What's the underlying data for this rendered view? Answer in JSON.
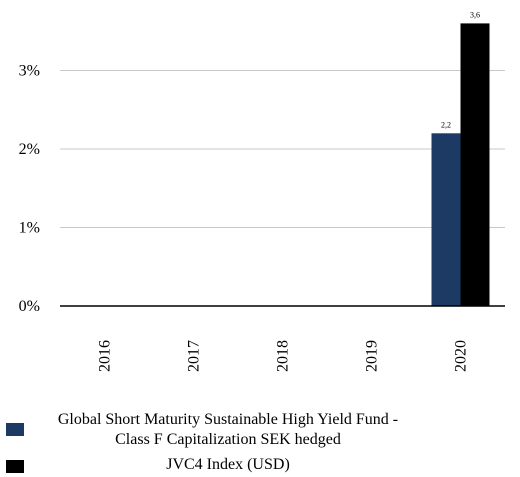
{
  "chart_data": {
    "type": "bar",
    "categories": [
      "2016",
      "2017",
      "2018",
      "2019",
      "2020"
    ],
    "series": [
      {
        "name": "Global Short Maturity Sustainable High Yield Fund - Class F Capitalization SEK hedged",
        "values": [
          null,
          null,
          null,
          null,
          2.2
        ],
        "data_labels": [
          "",
          "",
          "",
          "",
          "2,2"
        ],
        "color": "#1c3a63"
      },
      {
        "name": "JVC4 Index (USD)",
        "values": [
          null,
          null,
          null,
          null,
          3.6
        ],
        "data_labels": [
          "",
          "",
          "",
          "",
          "3,6"
        ],
        "color": "#000000"
      }
    ],
    "yticks": [
      0,
      1,
      2,
      3
    ],
    "ytick_labels": [
      "0%",
      "1%",
      "2%",
      "3%"
    ],
    "ylim": [
      0,
      3.8
    ],
    "grid": true,
    "legend_position": "bottom-left"
  },
  "legend": {
    "line1": "Global Short Maturity Sustainable High Yield Fund -",
    "line2": "Class F Capitalization SEK hedged",
    "line3": "JVC4 Index (USD)"
  }
}
